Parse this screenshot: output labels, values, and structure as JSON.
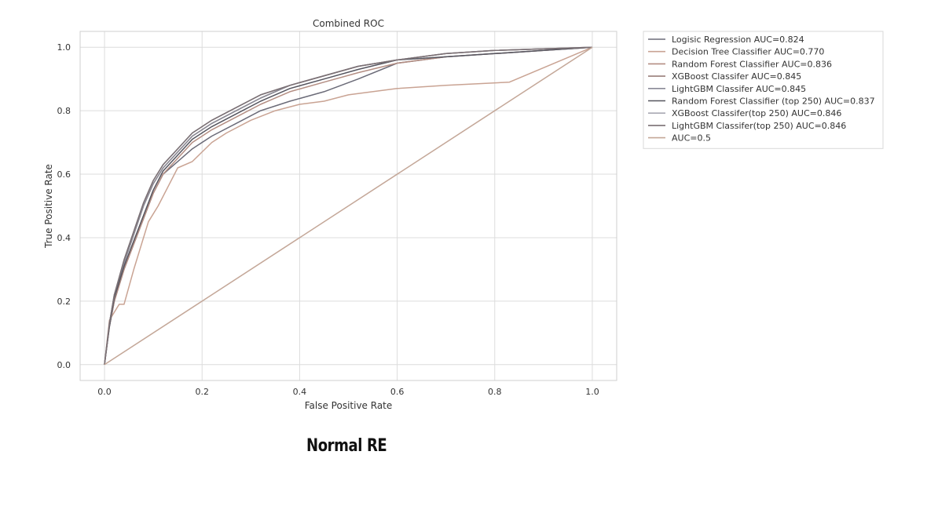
{
  "caption": "Normal RE",
  "chart_data": {
    "type": "line",
    "title": "Combined ROC",
    "xlabel": "False Positive Rate",
    "ylabel": "True Positive Rate",
    "xlim": [
      -0.05,
      1.05
    ],
    "ylim": [
      -0.05,
      1.05
    ],
    "xticks": [
      0.0,
      0.2,
      0.4,
      0.6,
      0.8,
      1.0
    ],
    "yticks": [
      0.0,
      0.2,
      0.4,
      0.6,
      0.8,
      1.0
    ],
    "xtick_labels": [
      "0.0",
      "0.2",
      "0.4",
      "0.6",
      "0.8",
      "1.0"
    ],
    "ytick_labels": [
      "0.0",
      "0.2",
      "0.4",
      "0.6",
      "0.8",
      "1.0"
    ],
    "grid": true,
    "legend_position": "outside-top-right",
    "series": [
      {
        "name": "Logisic Regression AUC=0.824",
        "color": "#6b6b78",
        "x": [
          0,
          0.01,
          0.02,
          0.04,
          0.06,
          0.08,
          0.1,
          0.12,
          0.15,
          0.18,
          0.22,
          0.27,
          0.32,
          0.38,
          0.45,
          0.52,
          0.6,
          0.7,
          0.8,
          0.9,
          1.0
        ],
        "y": [
          0,
          0.12,
          0.2,
          0.3,
          0.38,
          0.46,
          0.54,
          0.6,
          0.64,
          0.68,
          0.72,
          0.76,
          0.8,
          0.83,
          0.86,
          0.9,
          0.95,
          0.97,
          0.98,
          0.99,
          1.0
        ]
      },
      {
        "name": "Decision Tree Classifier AUC=0.770",
        "color": "#c9a393",
        "x": [
          0,
          0.01,
          0.03,
          0.04,
          0.06,
          0.09,
          0.11,
          0.13,
          0.15,
          0.18,
          0.22,
          0.25,
          0.3,
          0.35,
          0.4,
          0.45,
          0.5,
          0.6,
          0.7,
          0.83,
          1.0
        ],
        "y": [
          0,
          0.14,
          0.19,
          0.19,
          0.3,
          0.45,
          0.5,
          0.56,
          0.62,
          0.64,
          0.7,
          0.73,
          0.77,
          0.8,
          0.82,
          0.83,
          0.85,
          0.87,
          0.88,
          0.89,
          1.0
        ]
      },
      {
        "name": "Random Forest Classifier AUC=0.836",
        "color": "#b48e83",
        "x": [
          0,
          0.01,
          0.02,
          0.04,
          0.06,
          0.08,
          0.1,
          0.12,
          0.15,
          0.18,
          0.22,
          0.27,
          0.32,
          0.38,
          0.45,
          0.52,
          0.6,
          0.7,
          0.8,
          0.9,
          1.0
        ],
        "y": [
          0,
          0.12,
          0.2,
          0.3,
          0.38,
          0.46,
          0.54,
          0.6,
          0.65,
          0.7,
          0.74,
          0.78,
          0.82,
          0.86,
          0.89,
          0.92,
          0.95,
          0.97,
          0.98,
          0.99,
          1.0
        ]
      },
      {
        "name": "XGBoost Classifer AUC=0.845",
        "color": "#9a7f7a",
        "x": [
          0,
          0.01,
          0.02,
          0.04,
          0.06,
          0.08,
          0.1,
          0.12,
          0.15,
          0.18,
          0.22,
          0.27,
          0.32,
          0.38,
          0.45,
          0.52,
          0.6,
          0.7,
          0.8,
          0.9,
          1.0
        ],
        "y": [
          0,
          0.13,
          0.22,
          0.32,
          0.41,
          0.5,
          0.57,
          0.62,
          0.67,
          0.72,
          0.76,
          0.8,
          0.84,
          0.88,
          0.91,
          0.94,
          0.96,
          0.98,
          0.99,
          0.995,
          1.0
        ]
      },
      {
        "name": "LightGBM Classifer AUC=0.845",
        "color": "#8a8a96",
        "x": [
          0,
          0.01,
          0.02,
          0.04,
          0.06,
          0.08,
          0.1,
          0.12,
          0.15,
          0.18,
          0.22,
          0.27,
          0.32,
          0.38,
          0.45,
          0.52,
          0.6,
          0.7,
          0.8,
          0.9,
          1.0
        ],
        "y": [
          0,
          0.13,
          0.22,
          0.32,
          0.41,
          0.5,
          0.57,
          0.62,
          0.67,
          0.72,
          0.76,
          0.8,
          0.84,
          0.88,
          0.91,
          0.94,
          0.96,
          0.98,
          0.99,
          0.995,
          1.0
        ]
      },
      {
        "name": "Random Forest Classifier (top 250) AUC=0.837",
        "color": "#55555f",
        "x": [
          0,
          0.01,
          0.02,
          0.04,
          0.06,
          0.08,
          0.1,
          0.12,
          0.15,
          0.18,
          0.22,
          0.27,
          0.32,
          0.38,
          0.45,
          0.52,
          0.6,
          0.7,
          0.8,
          0.9,
          1.0
        ],
        "y": [
          0,
          0.12,
          0.21,
          0.31,
          0.39,
          0.47,
          0.55,
          0.61,
          0.66,
          0.71,
          0.75,
          0.79,
          0.83,
          0.87,
          0.9,
          0.93,
          0.96,
          0.97,
          0.98,
          0.99,
          1.0
        ]
      },
      {
        "name": "XGBoost Classifer(top 250) AUC=0.846",
        "color": "#a9a9b3",
        "x": [
          0,
          0.01,
          0.02,
          0.04,
          0.06,
          0.08,
          0.1,
          0.12,
          0.15,
          0.18,
          0.22,
          0.27,
          0.32,
          0.38,
          0.45,
          0.52,
          0.6,
          0.7,
          0.8,
          0.9,
          1.0
        ],
        "y": [
          0,
          0.13,
          0.22,
          0.33,
          0.42,
          0.51,
          0.58,
          0.63,
          0.68,
          0.73,
          0.77,
          0.81,
          0.85,
          0.88,
          0.91,
          0.94,
          0.96,
          0.98,
          0.99,
          0.995,
          1.0
        ]
      },
      {
        "name": "LightGBM Classifer(top 250) AUC=0.846",
        "color": "#7a6f73",
        "x": [
          0,
          0.01,
          0.02,
          0.04,
          0.06,
          0.08,
          0.1,
          0.12,
          0.15,
          0.18,
          0.22,
          0.27,
          0.32,
          0.38,
          0.45,
          0.52,
          0.6,
          0.7,
          0.8,
          0.9,
          1.0
        ],
        "y": [
          0,
          0.13,
          0.22,
          0.33,
          0.42,
          0.51,
          0.58,
          0.63,
          0.68,
          0.73,
          0.77,
          0.81,
          0.85,
          0.88,
          0.91,
          0.94,
          0.96,
          0.98,
          0.99,
          0.995,
          1.0
        ]
      },
      {
        "name": "AUC=0.5",
        "color": "#c4a798",
        "x": [
          0,
          1.0
        ],
        "y": [
          0,
          1.0
        ]
      }
    ]
  }
}
